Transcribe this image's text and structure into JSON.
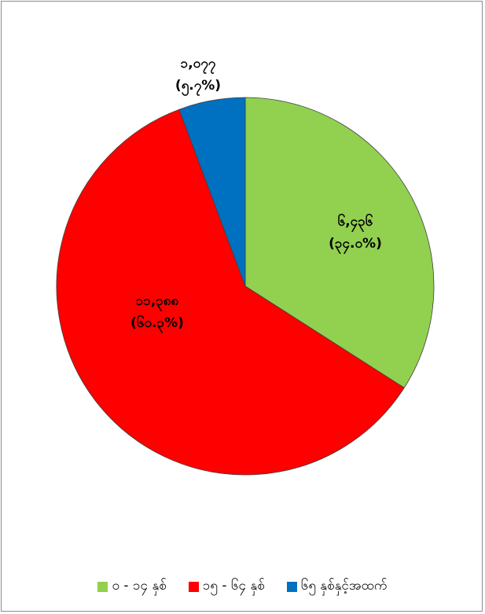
{
  "chart_data": {
    "type": "pie",
    "slices": [
      {
        "name": "၀ - ၁၄ နှစ်",
        "value": 6436,
        "value_label": "၆,၄၃၆",
        "percent_label": "(၃၄.၀%)",
        "color": "#92d050"
      },
      {
        "name": "၁၅ - ၆၄ နှစ်",
        "value": 11388,
        "value_label": "၁၁,၃၈၈",
        "percent_label": "(၆၀.၃%)",
        "color": "#ff0000"
      },
      {
        "name": "၆၅ နှစ်နှင့်အထက်",
        "value": 1077,
        "value_label": "၁,၀၇၇",
        "percent_label": "(၅.၇%)",
        "color": "#0070c0"
      }
    ],
    "legend_position": "bottom"
  }
}
